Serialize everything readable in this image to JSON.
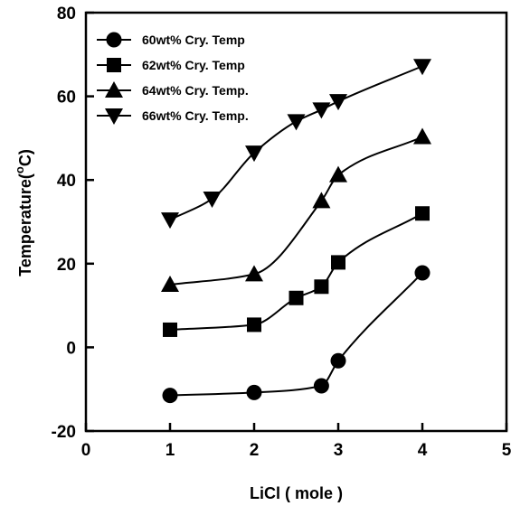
{
  "chart_data": {
    "type": "line",
    "title": "",
    "xlabel": "LiCl ( mole )",
    "ylabel": "Temperature(",
    "ylabel_sup": "o",
    "ylabel_suffix": "C)",
    "xlim": [
      0,
      5
    ],
    "ylim": [
      -20,
      80
    ],
    "xticks": [
      0,
      1,
      2,
      3,
      4,
      5
    ],
    "yticks": [
      -20,
      0,
      20,
      40,
      60,
      80
    ],
    "grid": false,
    "legend_position": "top-left",
    "series": [
      {
        "name": "60wt% Cry. Temp",
        "marker": "circle",
        "x": [
          1,
          2,
          2.8,
          3,
          4
        ],
        "y": [
          -11.5,
          -10.8,
          -9.2,
          -3.2,
          17.8
        ]
      },
      {
        "name": "62wt% Cry. Temp",
        "marker": "square",
        "x": [
          1,
          2,
          2.5,
          2.8,
          3,
          4
        ],
        "y": [
          4.2,
          5.4,
          11.8,
          14.5,
          20.3,
          32.0
        ]
      },
      {
        "name": "64wt% Cry. Temp.",
        "marker": "triangle-up",
        "x": [
          1,
          2,
          2.8,
          3,
          4
        ],
        "y": [
          15.0,
          17.5,
          35.0,
          41.2,
          50.3
        ]
      },
      {
        "name": "66wt% Cry. Temp.",
        "marker": "triangle-down",
        "x": [
          1,
          1.5,
          2,
          2.5,
          2.8,
          3,
          4
        ],
        "y": [
          30.5,
          35.5,
          46.5,
          54.0,
          56.8,
          58.8,
          67.2
        ]
      }
    ]
  }
}
